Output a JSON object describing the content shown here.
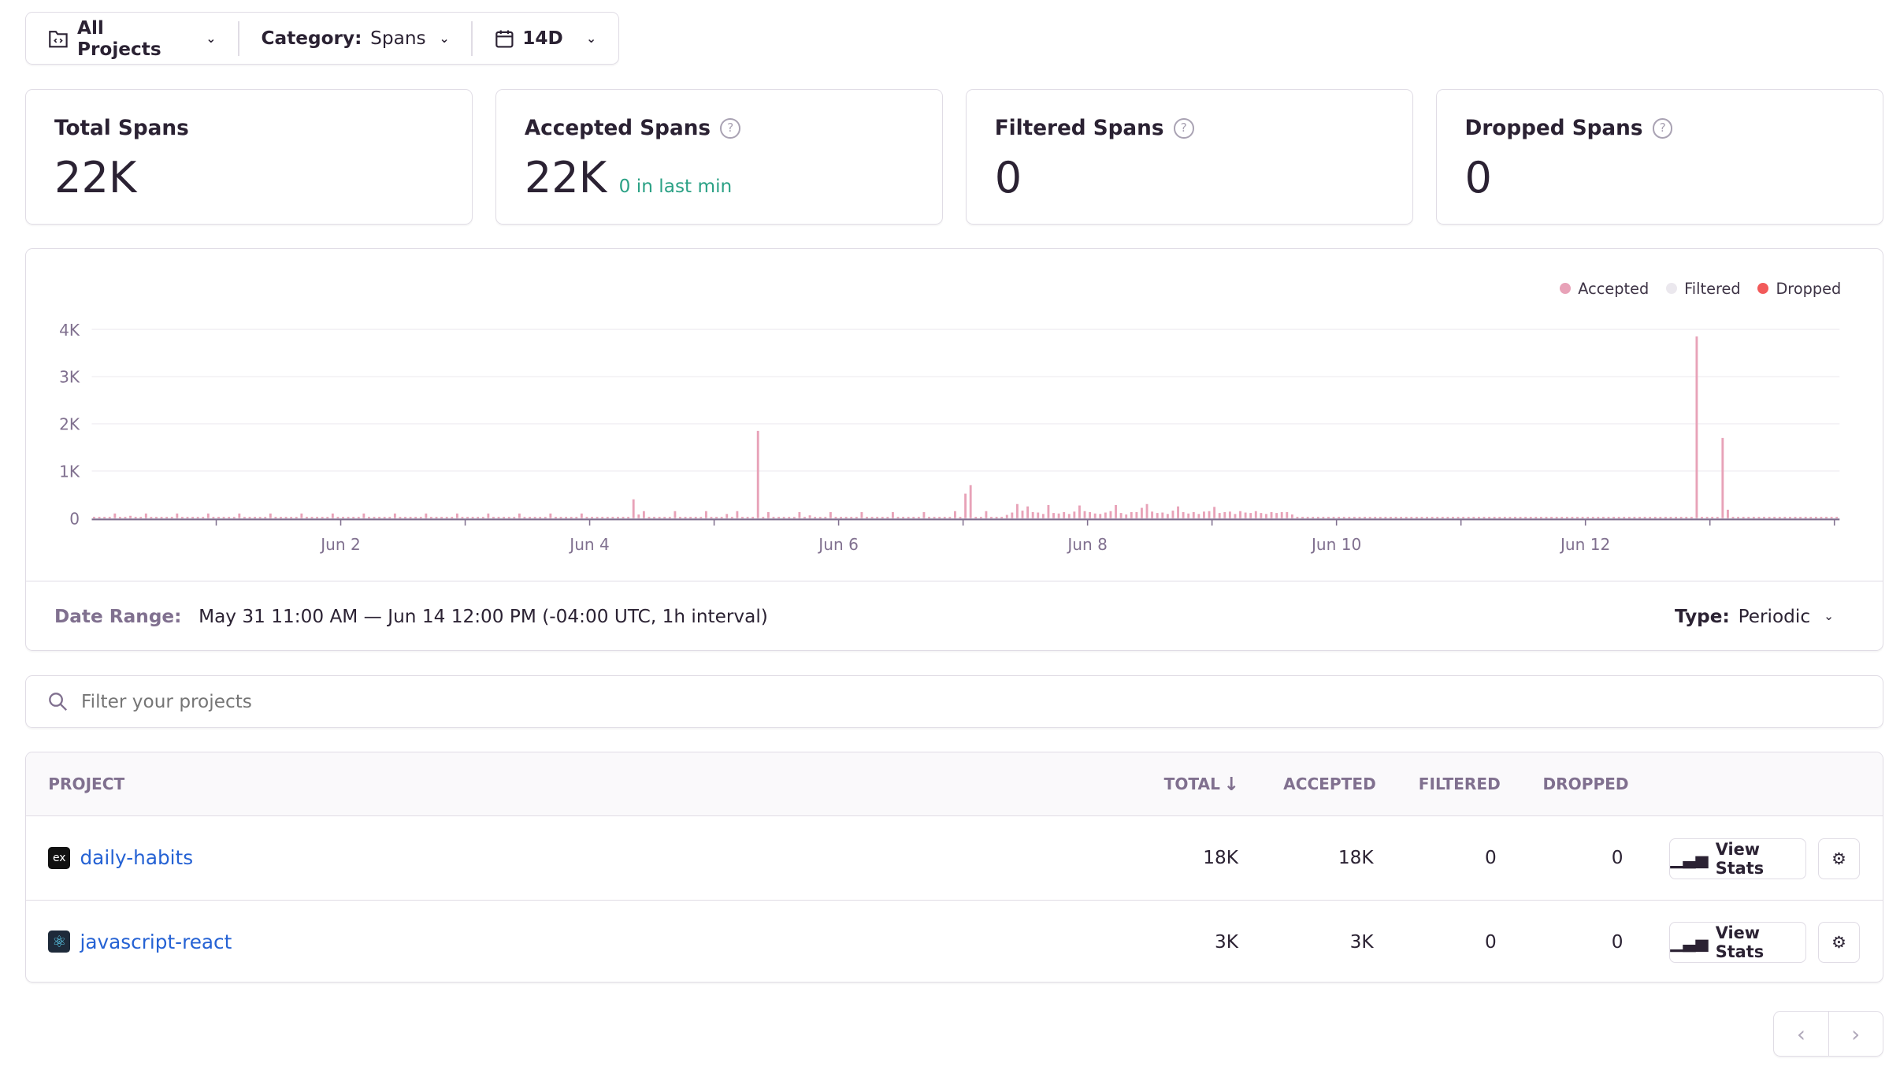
{
  "filters": {
    "projects": "All Projects",
    "category_label": "Category:",
    "category_value": "Spans",
    "period": "14D"
  },
  "stats": [
    {
      "title": "Total Spans",
      "value": "22K"
    },
    {
      "title": "Accepted Spans",
      "value": "22K",
      "sub": "0 in last min"
    },
    {
      "title": "Filtered Spans",
      "value": "0"
    },
    {
      "title": "Dropped Spans",
      "value": "0"
    }
  ],
  "colors": {
    "accepted": "#e8a2b8",
    "filtered": "#ebe8ee",
    "dropped": "#f25a5a",
    "sub_green": "#2ba185",
    "link": "#2562d4"
  },
  "chart_data": {
    "type": "bar",
    "legend": [
      "Accepted",
      "Filtered",
      "Dropped"
    ],
    "legend_position": "top-right",
    "ylim": [
      0,
      4000
    ],
    "y_ticks": [
      "0",
      "1K",
      "2K",
      "3K",
      "4K"
    ],
    "x_ticks": [
      "Jun 2",
      "Jun 4",
      "Jun 6",
      "Jun 8",
      "Jun 10",
      "Jun 12"
    ],
    "grid": true,
    "interval": "1h",
    "series": [
      {
        "name": "Accepted",
        "values": [
          30,
          30,
          30,
          30,
          100,
          30,
          30,
          50,
          30,
          30,
          100,
          30,
          30,
          30,
          30,
          30,
          100,
          30,
          30,
          30,
          30,
          30,
          100,
          30,
          30,
          30,
          30,
          30,
          100,
          30,
          30,
          30,
          30,
          30,
          100,
          30,
          30,
          30,
          30,
          30,
          100,
          30,
          30,
          30,
          30,
          30,
          100,
          30,
          30,
          30,
          30,
          30,
          100,
          30,
          30,
          30,
          30,
          30,
          100,
          30,
          30,
          30,
          30,
          30,
          100,
          30,
          30,
          30,
          30,
          30,
          100,
          30,
          30,
          30,
          30,
          30,
          100,
          30,
          30,
          30,
          30,
          30,
          100,
          30,
          30,
          30,
          30,
          30,
          100,
          30,
          30,
          30,
          30,
          30,
          100,
          30,
          30,
          30,
          30,
          30,
          30,
          30,
          30,
          30,
          400,
          80,
          150,
          30,
          30,
          30,
          30,
          30,
          150,
          30,
          30,
          30,
          30,
          30,
          150,
          30,
          30,
          30,
          90,
          30,
          150,
          30,
          30,
          30,
          1850,
          30,
          130,
          30,
          30,
          30,
          30,
          30,
          130,
          30,
          60,
          30,
          30,
          30,
          130,
          30,
          30,
          30,
          30,
          30,
          130,
          30,
          30,
          30,
          30,
          30,
          130,
          30,
          30,
          30,
          30,
          30,
          130,
          30,
          30,
          30,
          30,
          30,
          150,
          30,
          520,
          700,
          30,
          30,
          150,
          30,
          30,
          30,
          70,
          120,
          300,
          160,
          250,
          130,
          120,
          90,
          280,
          110,
          100,
          130,
          90,
          140,
          270,
          150,
          130,
          100,
          90,
          120,
          150,
          280,
          110,
          80,
          130,
          130,
          220,
          300,
          140,
          110,
          120,
          90,
          160,
          250,
          130,
          100,
          130,
          90,
          140,
          150,
          240,
          110,
          130,
          140,
          90,
          150,
          120,
          110,
          150,
          110,
          90,
          130,
          110,
          130,
          130,
          80,
          30,
          30,
          30,
          30,
          30,
          30,
          30,
          30,
          30,
          30,
          30,
          30,
          30,
          30,
          30,
          30,
          30,
          30,
          30,
          30,
          30,
          30,
          30,
          30,
          30,
          30,
          30,
          30,
          30,
          30,
          30,
          30,
          30,
          30,
          30,
          30,
          30,
          30,
          30,
          30,
          30,
          30,
          30,
          30,
          30,
          30,
          30,
          30,
          30,
          30,
          30,
          30,
          30,
          30,
          30,
          30,
          30,
          30,
          30,
          30,
          30,
          30,
          30,
          30,
          30,
          30,
          30,
          30,
          30,
          30,
          30,
          30,
          30,
          30,
          30,
          30,
          30,
          3850,
          30,
          30,
          30,
          30,
          1700,
          180,
          30,
          30,
          30,
          30,
          30,
          30,
          30,
          30,
          30,
          30,
          30,
          30,
          30,
          30,
          30,
          30,
          30,
          30,
          30,
          30,
          30
        ]
      },
      {
        "name": "Filtered",
        "values": []
      },
      {
        "name": "Dropped",
        "values": []
      }
    ]
  },
  "chart_footer": {
    "date_range_label": "Date Range:",
    "date_range_value": "May 31 11:00 AM — Jun 14 12:00 PM (-04:00 UTC, 1h interval)",
    "type_label": "Type:",
    "type_value": "Periodic"
  },
  "search": {
    "placeholder": "Filter your projects"
  },
  "table": {
    "headers": {
      "project": "PROJECT",
      "total": "TOTAL",
      "accepted": "ACCEPTED",
      "filtered": "FILTERED",
      "dropped": "DROPPED"
    },
    "sort_icon": "arrow-down-icon",
    "view_stats": "View Stats",
    "rows": [
      {
        "name": "daily-habits",
        "icon": "express-icon",
        "total": "18K",
        "accepted": "18K",
        "filtered": "0",
        "dropped": "0"
      },
      {
        "name": "javascript-react",
        "icon": "react-icon",
        "total": "3K",
        "accepted": "3K",
        "filtered": "0",
        "dropped": "0"
      }
    ]
  }
}
